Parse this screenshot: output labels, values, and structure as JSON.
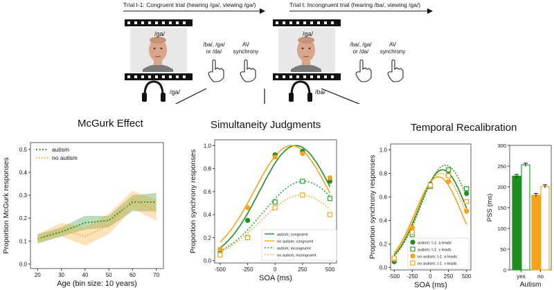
{
  "trials": {
    "prev_caption": "Trial t-1: Congruent trial (hearing /ga/, viewing /ga/)",
    "curr_caption": "Trial t: Incongruent trial (hearing /ba/, viewing /ga/)",
    "prev_visual_syllable": "/ga/",
    "curr_visual_syllable": "/ga/",
    "prev_audio_syllable": "/ga/",
    "curr_audio_syllable": "/ba/",
    "choice_line1": "/ba/, /ga/",
    "choice_line2": "or /da/",
    "sync_line1": "AV",
    "sync_line2": "synchrony"
  },
  "titles": {
    "mcgurk": "McGurk Effect",
    "sj": "Simultaneity Judgments",
    "tr": "Temporal Recalibration"
  },
  "colors": {
    "autism": "#1e8c1e",
    "no_autism": "#f5a31c",
    "autism_fill": "#2aa02a"
  },
  "chart_data": [
    {
      "type": "line",
      "title": "McGurk Effect",
      "xlabel": "Age (bin size: 10 years)",
      "ylabel": "Proportion McGurk responses",
      "xlim": [
        17,
        73
      ],
      "ylim": [
        -0.02,
        0.53
      ],
      "xticks": [
        20,
        30,
        40,
        50,
        60,
        70
      ],
      "yticks": [
        0.0,
        0.1,
        0.2,
        0.3,
        0.4,
        0.5
      ],
      "legend": [
        "autism",
        "no autism"
      ],
      "x": [
        20,
        30,
        40,
        50,
        60,
        70
      ],
      "series": [
        {
          "name": "autism",
          "values": [
            0.11,
            0.14,
            0.18,
            0.19,
            0.27,
            0.27
          ],
          "ci_low": [
            0.09,
            0.12,
            0.15,
            0.16,
            0.23,
            0.23
          ],
          "ci_high": [
            0.13,
            0.16,
            0.21,
            0.21,
            0.3,
            0.31
          ]
        },
        {
          "name": "no autism",
          "values": [
            0.11,
            0.15,
            0.12,
            0.17,
            0.28,
            0.23
          ],
          "ci_low": [
            0.09,
            0.12,
            0.08,
            0.13,
            0.24,
            0.19
          ],
          "ci_high": [
            0.13,
            0.18,
            0.16,
            0.22,
            0.32,
            0.28
          ]
        }
      ]
    },
    {
      "type": "scatter",
      "title": "Simultaneity Judgments",
      "xlabel": "SOA (ms)",
      "ylabel": "Proportion synchrony responses",
      "xlim": [
        -550,
        560
      ],
      "ylim": [
        -0.02,
        1.05
      ],
      "xticks": [
        -500,
        -250,
        0,
        250,
        500
      ],
      "yticks": [
        0.0,
        0.2,
        0.4,
        0.6,
        0.8,
        1.0
      ],
      "legend": [
        "autism; congruent",
        "no autism; congruent",
        "autism; incongruent",
        "no autism; incongruent"
      ],
      "x": [
        -500,
        -250,
        0,
        250,
        500
      ],
      "series": [
        {
          "name": "autism; congruent",
          "values": [
            0.07,
            0.35,
            0.92,
            0.95,
            0.69
          ]
        },
        {
          "name": "no autism; congruent",
          "values": [
            0.1,
            0.46,
            0.9,
            0.93,
            0.72
          ]
        },
        {
          "name": "autism; incongruent",
          "values": [
            0.06,
            0.2,
            0.51,
            0.69,
            0.54
          ]
        },
        {
          "name": "no autism; incongruent",
          "values": [
            0.05,
            0.2,
            0.46,
            0.57,
            0.4
          ]
        }
      ],
      "fit_peaks": [
        {
          "name": "autism; congruent",
          "mu": 190,
          "amp": 1.0,
          "sigma": 330
        },
        {
          "name": "no autism; congruent",
          "mu": 150,
          "amp": 1.0,
          "sigma": 340
        },
        {
          "name": "autism; incongruent",
          "mu": 260,
          "amp": 0.69,
          "sigma": 370
        },
        {
          "name": "no autism; incongruent",
          "mu": 240,
          "amp": 0.57,
          "sigma": 370
        }
      ]
    },
    {
      "type": "scatter",
      "title": "Temporal Recalibration",
      "xlabel": "SOA (ms)",
      "ylabel": "Proportion synchrony responses",
      "xlim": [
        -550,
        560
      ],
      "ylim": [
        -0.02,
        1.05
      ],
      "xticks": [
        -500,
        -250,
        0,
        250,
        500
      ],
      "yticks": [
        0.0,
        0.2,
        0.4,
        0.6,
        0.8,
        1.0
      ],
      "legend": [
        "autism; t-1: a leads",
        "autism; t-1: v leads",
        "no autism; t-1: a leads",
        "no autism; t-1: v leads"
      ],
      "x": [
        -500,
        -250,
        0,
        250,
        500
      ],
      "series": [
        {
          "name": "autism; t-1: a leads",
          "values": [
            0.05,
            0.3,
            0.71,
            0.79,
            0.63
          ]
        },
        {
          "name": "autism; t-1: v leads",
          "values": [
            0.07,
            0.28,
            0.69,
            0.83,
            0.67
          ]
        },
        {
          "name": "no autism; t-1: a leads",
          "values": [
            0.07,
            0.34,
            0.7,
            0.73,
            0.48
          ]
        },
        {
          "name": "no autism; t-1: v leads",
          "values": [
            0.08,
            0.3,
            0.7,
            0.78,
            0.56
          ]
        }
      ],
      "fit_peaks": [
        {
          "name": "autism; t-1: a leads",
          "mu": 170,
          "amp": 0.83,
          "sigma": 330
        },
        {
          "name": "autism; t-1: v leads",
          "mu": 210,
          "amp": 0.87,
          "sigma": 340
        },
        {
          "name": "no autism; t-1: a leads",
          "mu": 110,
          "amp": 0.77,
          "sigma": 320
        },
        {
          "name": "no autism; t-1: v leads",
          "mu": 150,
          "amp": 0.8,
          "sigma": 330
        }
      ]
    },
    {
      "type": "bar",
      "xlabel": "Autism",
      "ylabel": "PSS (ms)",
      "ylim": [
        0,
        300
      ],
      "yticks": [
        0,
        50,
        100,
        150,
        200,
        250,
        300
      ],
      "categories": [
        "yes",
        "no"
      ],
      "series": [
        {
          "name": "autism; t-1: a leads",
          "value": 226,
          "err": 4
        },
        {
          "name": "autism; t-1: v leads",
          "value": 253,
          "err": 4
        },
        {
          "name": "no autism; t-1: a leads",
          "value": 180,
          "err": 4
        },
        {
          "name": "no autism; t-1: v leads",
          "value": 201,
          "err": 4
        }
      ]
    }
  ]
}
